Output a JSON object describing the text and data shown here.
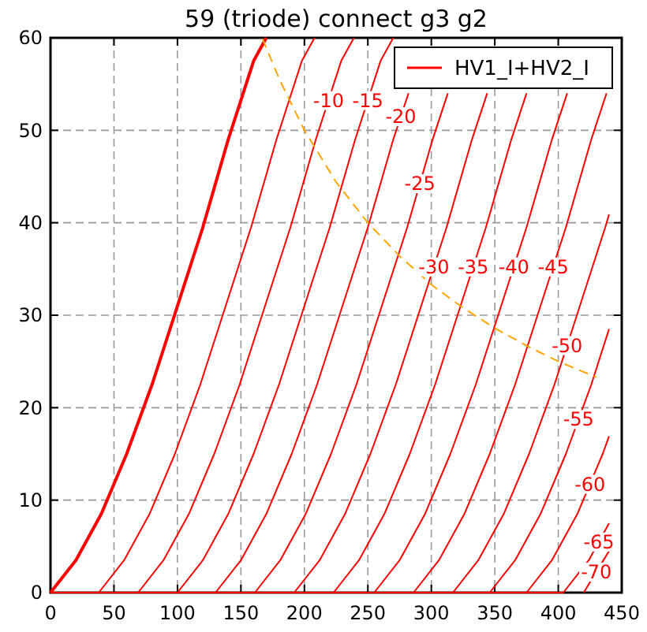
{
  "chart_data": {
    "type": "line",
    "title": "59 (triode) connect g3 g2",
    "xlim": [
      0,
      450
    ],
    "ylim": [
      0,
      60
    ],
    "xticks": [
      0,
      50,
      100,
      150,
      200,
      250,
      300,
      350,
      400,
      450
    ],
    "yticks": [
      0,
      10,
      20,
      30,
      40,
      50,
      60
    ],
    "grid": true,
    "legend": "top right",
    "marker": "none",
    "series": [
      {
        "color": "#ff0000",
        "x": [
          0,
          20,
          40,
          60,
          80,
          100,
          120,
          140,
          160,
          170
        ],
        "values": [
          0,
          3.5,
          8.5,
          15,
          22.5,
          31,
          39.5,
          49,
          57.5,
          60
        ]
      },
      {
        "name": "HV1_I+HV2_I",
        "color": "#ff0000",
        "x": [
          0,
          38,
          58,
          78,
          98,
          118,
          138,
          158,
          178,
          198,
          208
        ],
        "values": [
          0,
          0,
          3.5,
          8.5,
          15,
          22.5,
          31,
          39.5,
          49,
          57.5,
          60
        ]
      },
      {
        "color": "#ff0000",
        "x": [
          0,
          69,
          89,
          109,
          129,
          149,
          169,
          189,
          209,
          229,
          239
        ],
        "values": [
          0,
          0,
          3.5,
          8.5,
          15,
          22.5,
          31,
          39.5,
          49,
          57.5,
          60
        ]
      },
      {
        "color": "#ff0000",
        "x": [
          0,
          100,
          120,
          140,
          160,
          180,
          200,
          220,
          240,
          260,
          270
        ],
        "values": [
          0,
          0,
          3.5,
          8.5,
          15,
          22.5,
          31,
          39.5,
          49,
          57.5,
          60
        ]
      },
      {
        "color": "#ff0000",
        "x": [
          0,
          130,
          150,
          170,
          190,
          210,
          230,
          250,
          270,
          282
        ],
        "values": [
          0,
          0,
          3.5,
          8.5,
          15,
          22.5,
          31,
          39.5,
          49,
          54
        ]
      },
      {
        "color": "#ff0000",
        "x": [
          0,
          161,
          181,
          201,
          221,
          241,
          261,
          281,
          301,
          313
        ],
        "values": [
          0,
          0,
          3.5,
          8.5,
          15,
          22.5,
          31,
          39.5,
          49,
          54
        ]
      },
      {
        "color": "#ff0000",
        "x": [
          0,
          192,
          212,
          232,
          252,
          272,
          292,
          312,
          332,
          344
        ],
        "values": [
          0,
          0,
          3.5,
          8.5,
          15,
          22.5,
          31,
          39.5,
          49,
          54
        ]
      },
      {
        "color": "#ff0000",
        "x": [
          0,
          223,
          243,
          263,
          283,
          303,
          323,
          343,
          363,
          375
        ],
        "values": [
          0,
          0,
          3.5,
          8.5,
          15,
          22.5,
          31,
          39.5,
          49,
          54
        ]
      },
      {
        "color": "#ff0000",
        "x": [
          0,
          255,
          275,
          295,
          315,
          335,
          355,
          375,
          395,
          407
        ],
        "values": [
          0,
          0,
          3.5,
          8.5,
          15,
          22.5,
          31,
          39.5,
          49,
          54
        ]
      },
      {
        "color": "#ff0000",
        "x": [
          0,
          286,
          306,
          326,
          346,
          366,
          386,
          406,
          426,
          438
        ],
        "values": [
          0,
          0,
          3.5,
          8.5,
          15,
          22.5,
          31,
          39.5,
          49,
          54
        ]
      },
      {
        "color": "#ff0000",
        "x": [
          0,
          317,
          337,
          357,
          377,
          397,
          417,
          437,
          440
        ],
        "values": [
          0,
          0,
          3.5,
          8.5,
          15,
          22.5,
          31,
          39.5,
          40.9
        ]
      },
      {
        "color": "#ff0000",
        "x": [
          0,
          346,
          366,
          386,
          406,
          426,
          440
        ],
        "values": [
          0,
          0,
          3.5,
          8.5,
          15,
          22.5,
          28.5
        ]
      },
      {
        "color": "#ff0000",
        "x": [
          0,
          375,
          395,
          415,
          435,
          440
        ],
        "values": [
          0,
          0,
          3.5,
          8.5,
          15,
          16.9
        ]
      },
      {
        "color": "#ff0000",
        "x": [
          0,
          404,
          424,
          440
        ],
        "values": [
          0,
          0,
          3.5,
          7.5
        ]
      },
      {
        "color": "#ff0000",
        "x": [
          420,
          440
        ],
        "values": [
          0,
          4.5
        ]
      },
      {
        "color": "#ffa500",
        "line_style": "dashed",
        "x": [
          167,
          180,
          200,
          225,
          250,
          275,
          300,
          325,
          350,
          375,
          400,
          430
        ],
        "values": [
          59.9,
          55.6,
          50,
          44.4,
          40,
          36.4,
          33.3,
          30.8,
          28.6,
          26.7,
          25,
          23.3
        ]
      }
    ],
    "annotations": [
      {
        "text": "-10",
        "x": 219,
        "y": 53.25
      },
      {
        "text": "-15",
        "x": 250,
        "y": 53.25
      },
      {
        "text": "-20",
        "x": 276,
        "y": 51.5
      },
      {
        "text": "-25",
        "x": 291,
        "y": 44.25
      },
      {
        "text": "-30",
        "x": 302,
        "y": 35.25
      },
      {
        "text": "-35",
        "x": 333,
        "y": 35.25
      },
      {
        "text": "-40",
        "x": 365,
        "y": 35.25
      },
      {
        "text": "-45",
        "x": 396,
        "y": 35.25
      },
      {
        "text": "-50",
        "x": 407,
        "y": 26.75
      },
      {
        "text": "-55",
        "x": 416,
        "y": 18.75
      },
      {
        "text": "-60",
        "x": 425,
        "y": 11.75
      },
      {
        "text": "-65",
        "x": 432,
        "y": 5.5
      },
      {
        "text": "-70",
        "x": 430,
        "y": 2.25
      }
    ]
  }
}
